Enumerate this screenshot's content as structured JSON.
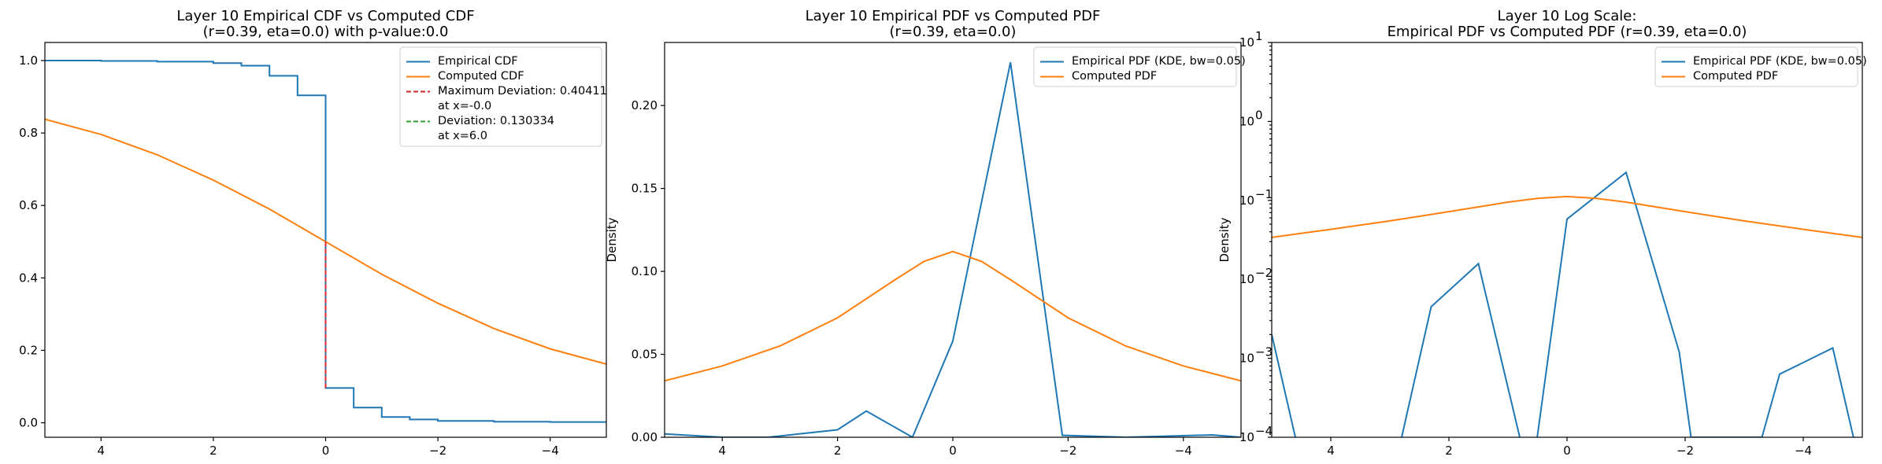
{
  "chart_data": [
    {
      "type": "line",
      "title_line1": "Layer 10 Empirical CDF vs Computed CDF",
      "title_line2": "(r=0.39, eta=0.0) with p-value:0.0",
      "ylabel": "",
      "xlim": [
        5,
        -5
      ],
      "ylim": [
        -0.04,
        1.05
      ],
      "yscale": "linear",
      "xticks": [
        4,
        2,
        0,
        -2,
        -4
      ],
      "xticklabels": [
        "4",
        "2",
        "0",
        "−2",
        "−4"
      ],
      "yticks": [
        0.0,
        0.2,
        0.4,
        0.6,
        0.8,
        1.0
      ],
      "yticklabels": [
        "0.0",
        "0.2",
        "0.4",
        "0.6",
        "0.8",
        "1.0"
      ],
      "legend_position": "upper right",
      "series": [
        {
          "name": "Empirical CDF",
          "color": "#1f77b4",
          "style": "step",
          "x": [
            5,
            4,
            3,
            2,
            1.5,
            1.0,
            0.5,
            0.0,
            0.0,
            -0.5,
            -1.0,
            -1.5,
            -2.0,
            -3.0,
            -4.0,
            -5.0
          ],
          "y": [
            1.0,
            0.999,
            0.997,
            0.993,
            0.986,
            0.958,
            0.904,
            0.904,
            0.096,
            0.042,
            0.016,
            0.009,
            0.005,
            0.003,
            0.002,
            0.001
          ]
        },
        {
          "name": "Computed CDF",
          "color": "#ff7f0e",
          "style": "line",
          "x": [
            5,
            4,
            3,
            2,
            1,
            0,
            -1,
            -2,
            -3,
            -4,
            -5
          ],
          "y": [
            0.838,
            0.796,
            0.74,
            0.67,
            0.59,
            0.5,
            0.41,
            0.33,
            0.26,
            0.204,
            0.162
          ]
        },
        {
          "name": "Maximum Deviation: 0.40411\nat x=-0.0",
          "color": "#d62728",
          "style": "dashed",
          "x": [
            0.0,
            0.0
          ],
          "y": [
            0.096,
            0.5
          ]
        },
        {
          "name": "Deviation: 0.130334\nat x=6.0",
          "color": "#2ca02c",
          "style": "dashed",
          "x": [],
          "y": []
        }
      ]
    },
    {
      "type": "line",
      "title_line1": "Layer 10 Empirical PDF vs Computed PDF",
      "title_line2": "(r=0.39, eta=0.0)",
      "ylabel": "Density",
      "xlim": [
        5,
        -5
      ],
      "ylim": [
        0.0,
        0.238
      ],
      "yscale": "linear",
      "xticks": [
        4,
        2,
        0,
        -2,
        -4
      ],
      "xticklabels": [
        "4",
        "2",
        "0",
        "−2",
        "−4"
      ],
      "yticks": [
        0.0,
        0.05,
        0.1,
        0.15,
        0.2
      ],
      "yticklabels": [
        "0.00",
        "0.05",
        "0.10",
        "0.15",
        "0.20"
      ],
      "legend_position": "upper right",
      "series": [
        {
          "name": "Empirical PDF (KDE, bw=0.05)",
          "color": "#1f77b4",
          "style": "line",
          "x": [
            5.0,
            4.0,
            3.2,
            2.0,
            1.5,
            0.7,
            0.0,
            -1.0,
            -1.9,
            -3.0,
            -4.5,
            -5.0
          ],
          "y": [
            0.002,
            0.0,
            0.0,
            0.0045,
            0.0158,
            0.0,
            0.058,
            0.226,
            0.0012,
            0.0,
            0.0014,
            0.0
          ]
        },
        {
          "name": "Computed PDF",
          "color": "#ff7f0e",
          "style": "line",
          "x": [
            5,
            4,
            3,
            2,
            1,
            0.5,
            0,
            -0.5,
            -1,
            -2,
            -3,
            -4,
            -5
          ],
          "y": [
            0.034,
            0.043,
            0.055,
            0.072,
            0.095,
            0.106,
            0.112,
            0.106,
            0.095,
            0.072,
            0.055,
            0.043,
            0.034
          ]
        }
      ]
    },
    {
      "type": "line",
      "title_line1": "Layer 10 Log Scale:",
      "title_line2": "Empirical PDF vs Computed PDF (r=0.39, eta=0.0)",
      "ylabel": "Density",
      "xlim": [
        5,
        -5
      ],
      "ylim": [
        0.0001,
        10
      ],
      "yscale": "log",
      "xticks": [
        4,
        2,
        0,
        -2,
        -4
      ],
      "xticklabels": [
        "4",
        "2",
        "0",
        "−2",
        "−4"
      ],
      "yticks": [
        0.0001,
        0.001,
        0.01,
        0.1,
        1,
        10
      ],
      "yticklabels_base": [
        "10",
        "10",
        "10",
        "10",
        "10",
        "10"
      ],
      "yticklabels_exp": [
        "−4",
        "−3",
        "−2",
        "−1",
        "0",
        "1"
      ],
      "legend_position": "upper right",
      "series": [
        {
          "name": "Empirical PDF (KDE, bw=0.05)",
          "color": "#1f77b4",
          "style": "line",
          "x": [
            5.0,
            4.6,
            4.4,
            3.0,
            2.8,
            2.3,
            1.5,
            0.8,
            0.6,
            0.0,
            -1.0,
            -1.9,
            -2.1,
            -3.3,
            -3.6,
            -4.5,
            -4.85
          ],
          "y": [
            0.002,
            0.0001,
            3e-05,
            3e-05,
            0.0001,
            0.0045,
            0.0158,
            0.0001,
            3e-05,
            0.058,
            0.226,
            0.0012,
            0.0001,
            0.0001,
            0.00063,
            0.00135,
            0.0001
          ]
        },
        {
          "name": "Computed PDF",
          "color": "#ff7f0e",
          "style": "line",
          "x": [
            5,
            4,
            3,
            2,
            1,
            0.5,
            0,
            -0.5,
            -1,
            -2,
            -3,
            -4,
            -5
          ],
          "y": [
            0.034,
            0.043,
            0.055,
            0.072,
            0.095,
            0.106,
            0.112,
            0.106,
            0.095,
            0.072,
            0.055,
            0.043,
            0.034
          ]
        }
      ]
    }
  ]
}
